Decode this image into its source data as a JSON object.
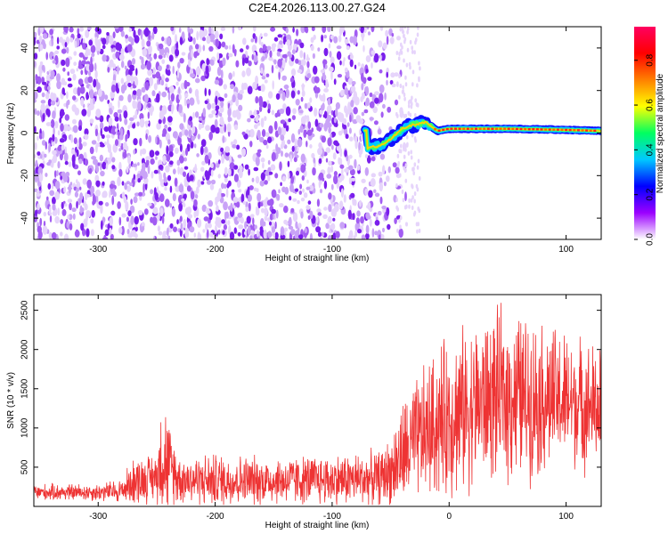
{
  "title": "C2E4.2026.113.00.27.G24",
  "chart_data": [
    {
      "type": "heatmap",
      "xlabel": "Height of straight line (km)",
      "ylabel": "Frequency (Hz)",
      "xlim": [
        -355,
        130
      ],
      "ylim": [
        -50,
        50
      ],
      "xticks": [
        -300,
        -200,
        -100,
        0,
        100
      ],
      "yticks": [
        -40,
        -20,
        0,
        20,
        40
      ],
      "colorbar": {
        "label": "Normalized spectral amplitude",
        "range": [
          0,
          0.95
        ],
        "ticks": [
          0,
          0.2,
          0.4,
          0.6,
          0.8
        ],
        "tick_labels": [
          "0.0",
          "0.2",
          "0.4",
          "0.6",
          "0.8"
        ],
        "colormap": [
          "#ffffff",
          "#9b00ff",
          "#0000ff",
          "#00c8ff",
          "#00ff60",
          "#ffff00",
          "#ff8000",
          "#ff0000",
          "#ff0060"
        ]
      },
      "signal_track": {
        "description_points": [
          {
            "x": -70,
            "y": -7
          },
          {
            "x": -60,
            "y": -6
          },
          {
            "x": -50,
            "y": -3
          },
          {
            "x": -40,
            "y": 2
          },
          {
            "x": -30,
            "y": 4
          },
          {
            "x": -20,
            "y": 5
          },
          {
            "x": -10,
            "y": 1
          },
          {
            "x": 0,
            "y": 2
          },
          {
            "x": 50,
            "y": 2
          },
          {
            "x": 100,
            "y": 1.5
          },
          {
            "x": 130,
            "y": 1
          }
        ]
      },
      "noise_region_x": [
        -355,
        -45
      ]
    },
    {
      "type": "line",
      "xlabel": "Height of straight line (km)",
      "ylabel": "SNR (10 * v/v)",
      "xlim": [
        -355,
        130
      ],
      "ylim": [
        0,
        2700
      ],
      "xticks": [
        -300,
        -200,
        -100,
        0,
        100
      ],
      "yticks": [
        500,
        1000,
        1500,
        2000,
        2500
      ],
      "series": [
        {
          "color": "#ee3333",
          "envelope_x": [
            -355,
            -300,
            -280,
            -270,
            -250,
            -245,
            -240,
            -230,
            -200,
            -150,
            -100,
            -60,
            -50,
            -40,
            -30,
            -20,
            0,
            30,
            40,
            60,
            100,
            130
          ],
          "envelope_baseline": [
            180,
            180,
            200,
            320,
            380,
            700,
            500,
            350,
            330,
            330,
            340,
            360,
            450,
            650,
            800,
            950,
            1150,
            1350,
            1400,
            1400,
            1350,
            1250
          ],
          "envelope_spread": [
            120,
            130,
            180,
            350,
            350,
            950,
            700,
            350,
            400,
            350,
            380,
            400,
            500,
            800,
            900,
            1000,
            1200,
            1200,
            1250,
            1250,
            1000,
            900
          ]
        }
      ]
    }
  ]
}
